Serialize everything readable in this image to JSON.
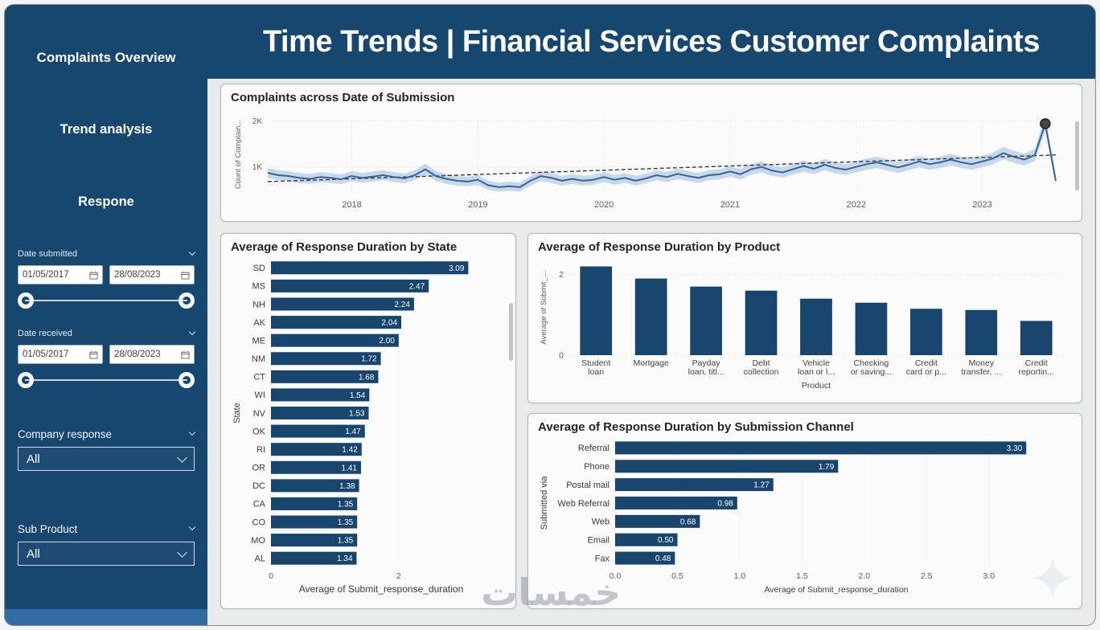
{
  "header": {
    "title": "Time Trends | Financial Services Customer Complaints"
  },
  "sidebar": {
    "nav": [
      {
        "label": "Complaints Overview"
      },
      {
        "label": "Trend analysis"
      },
      {
        "label": "Respone"
      }
    ],
    "date_submitted": {
      "label": "Date submitted",
      "start": "01/05/2017",
      "end": "28/08/2023"
    },
    "date_received": {
      "label": "Date received",
      "start": "01/05/2017",
      "end": "28/08/2023"
    },
    "company_response": {
      "label": "Company response",
      "value": "All"
    },
    "sub_product": {
      "label": "Sub Product",
      "value": "All"
    }
  },
  "watermark": {
    "text": "خمسات",
    "star": "✦"
  },
  "colors": {
    "brand": "#17466F",
    "bar": "#17456E",
    "line": "#31669C",
    "band": "#A9C2DC",
    "content_bg": "#E9EAEA",
    "card_bg": "#FBFBFB",
    "title_text": "#252423",
    "axis_text": "#605E5C"
  },
  "chart_data": [
    {
      "id": "complaints-across-date-of-submission",
      "type": "line",
      "title": "Complaints across Date of Submission",
      "ylabel": "Count of Complain...",
      "ylim": [
        400,
        2150
      ],
      "y_ticks": [
        {
          "value": 1000,
          "label": "1K"
        },
        {
          "value": 2000,
          "label": "2K"
        }
      ],
      "x_ticks": [
        {
          "index": 8,
          "label": "2018"
        },
        {
          "index": 20,
          "label": "2019"
        },
        {
          "index": 32,
          "label": "2020"
        },
        {
          "index": 44,
          "label": "2021"
        },
        {
          "index": 56,
          "label": "2022"
        },
        {
          "index": 68,
          "label": "2023"
        }
      ],
      "values": [
        870,
        820,
        800,
        760,
        740,
        780,
        760,
        730,
        800,
        760,
        790,
        820,
        780,
        750,
        820,
        950,
        800,
        740,
        700,
        680,
        720,
        600,
        560,
        580,
        560,
        700,
        800,
        760,
        700,
        740,
        700,
        720,
        780,
        720,
        760,
        700,
        750,
        820,
        780,
        850,
        800,
        760,
        820,
        840,
        900,
        840,
        950,
        1000,
        920,
        880,
        950,
        1020,
        960,
        1050,
        980,
        940,
        1000,
        1060,
        1100,
        1040,
        990,
        1050,
        1120,
        1060,
        1100,
        1160,
        1100,
        1060,
        1120,
        1180,
        1300,
        1220,
        1160,
        1260,
        1940,
        700
      ],
      "trend": {
        "start": 680,
        "end": 1260
      },
      "marker_index": 74
    },
    {
      "id": "avg-response-duration-by-state",
      "type": "hbar",
      "title": "Average of Response Duration by State",
      "xlabel": "Average of Submit_response_duration",
      "ylabel": "State",
      "categories": [
        "SD",
        "MS",
        "NH",
        "AK",
        "ME",
        "NM",
        "CT",
        "WI",
        "NV",
        "OK",
        "RI",
        "OR",
        "DC",
        "CA",
        "CO",
        "MO",
        "AL"
      ],
      "values": [
        3.09,
        2.47,
        2.24,
        2.04,
        2.0,
        1.72,
        1.68,
        1.54,
        1.53,
        1.47,
        1.42,
        1.41,
        1.38,
        1.35,
        1.35,
        1.35,
        1.34
      ],
      "x_ticks": [
        0,
        2
      ],
      "xlim": [
        0,
        3.45
      ],
      "left_margin": 50,
      "tick_decimals": 0,
      "xlabel_size": 12
    },
    {
      "id": "avg-response-duration-by-product",
      "type": "vbar",
      "title": "Average of Response Duration by Product",
      "xlabel": "Product",
      "ylabel": "Average of Submit_...",
      "categories": [
        "Student loan",
        "Mortgage",
        "Payday loan, titl...",
        "Debt collection",
        "Vehicle loan or l...",
        "Checking or saving...",
        "Credit card or p...",
        "Money transfer, ...",
        "Credit reportin..."
      ],
      "label_lines": [
        [
          "Student",
          "loan"
        ],
        [
          "Mortgage"
        ],
        [
          "Payday",
          "loan, titl..."
        ],
        [
          "Debt",
          "collection"
        ],
        [
          "Vehicle",
          "loan or l..."
        ],
        [
          "Checking",
          "or saving..."
        ],
        [
          "Credit",
          "card or p..."
        ],
        [
          "Money",
          "transfer, ..."
        ],
        [
          "Credit",
          "reportin..."
        ]
      ],
      "values": [
        2.2,
        1.9,
        1.7,
        1.6,
        1.4,
        1.3,
        1.15,
        1.12,
        0.85
      ],
      "y_ticks": [
        0,
        2
      ],
      "ylim": [
        0,
        2.35
      ]
    },
    {
      "id": "avg-response-duration-by-submission-channel",
      "type": "hbar",
      "title": "Average of Response Duration by Submission Channel",
      "xlabel": "Average of Submit_response_duration",
      "ylabel": "Submitted via",
      "categories": [
        "Referral",
        "Phone",
        "Postal mail",
        "Web Referral",
        "Web",
        "Email",
        "Fax"
      ],
      "values": [
        3.3,
        1.79,
        1.27,
        0.98,
        0.68,
        0.5,
        0.48
      ],
      "x_ticks": [
        0,
        0.5,
        1,
        1.5,
        2,
        2.5,
        3
      ],
      "xlim": [
        0,
        3.55
      ],
      "left_margin": 96,
      "tick_decimals": 1,
      "xlabel_size": 10.5
    }
  ]
}
